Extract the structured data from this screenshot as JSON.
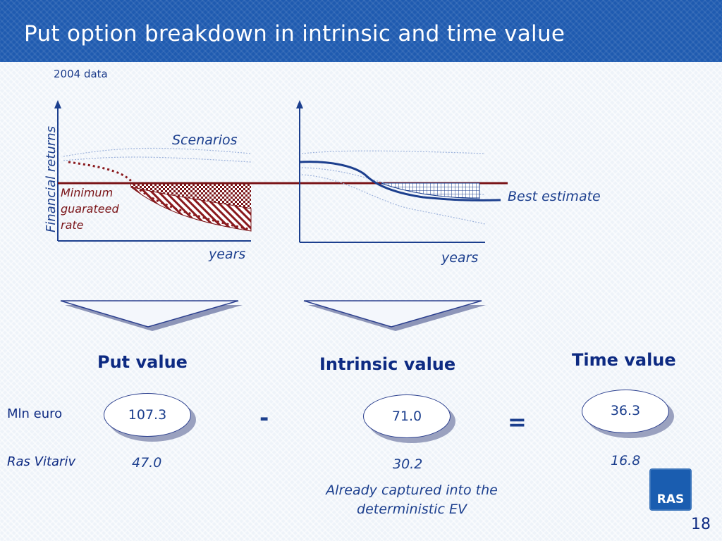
{
  "header": {
    "title": "Put option breakdown in intrinsic and time value"
  },
  "subtitle": "2004 data",
  "diagram": {
    "ylabel": "Financial returns",
    "scenarios_label": "Scenarios",
    "min_rate_label": [
      "Minimum",
      "guarateed",
      "rate"
    ],
    "best_estimate_label": "Best estimate",
    "xlabel_left": "years",
    "xlabel_right": "years",
    "colors": {
      "axis": "#1c3f8e",
      "min_rate_line": "#7a1418",
      "scenario_lines": "#8ea7d6",
      "best_estimate": "#1c3f8e"
    }
  },
  "columns": {
    "put": {
      "heading": "Put value",
      "value": "107.3",
      "ras_value": "47.0"
    },
    "intrinsic": {
      "heading": "Intrinsic value",
      "value": "71.0",
      "ras_value": "30.2",
      "note": "Already captured into the deterministic EV"
    },
    "time": {
      "heading": "Time value",
      "value": "36.3",
      "ras_value": "16.8"
    }
  },
  "operators": {
    "minus": "-",
    "equals": "="
  },
  "row_labels": {
    "mln_euro": "Mln euro",
    "ras_vitariv": "Ras Vitariv"
  },
  "logo": {
    "text": "RAS"
  },
  "page_number": "18"
}
